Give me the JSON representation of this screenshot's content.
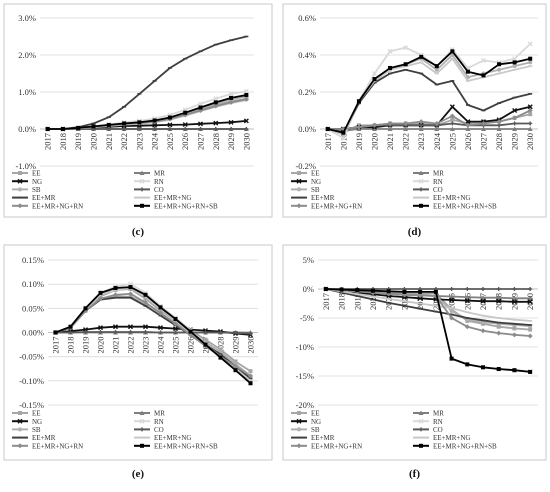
{
  "legend_entries": [
    "EE",
    "MR",
    "NG",
    "RN",
    "SB",
    "CO",
    "EE+MR",
    "EE+MR+NG",
    "EE+MR+NG+RN",
    "EE+MR+NG+RN+SB"
  ],
  "series_styles": [
    {
      "name": "EE",
      "color": "#a6a6a6",
      "marker": "square"
    },
    {
      "name": "MR",
      "color": "#7f7f7f",
      "marker": "triangle"
    },
    {
      "name": "NG",
      "color": "#111111",
      "marker": "x"
    },
    {
      "name": "RN",
      "color": "#d9d9d9",
      "marker": "x"
    },
    {
      "name": "SB",
      "color": "#b0b0b0",
      "marker": "circle"
    },
    {
      "name": "CO",
      "color": "#595959",
      "marker": "plus"
    },
    {
      "name": "EE+MR",
      "color": "#3f3f3f",
      "marker": "dash"
    },
    {
      "name": "EE+MR+NG",
      "color": "#c8c8c8",
      "marker": "dash"
    },
    {
      "name": "EE+MR+NG+RN",
      "color": "#8c8c8c",
      "marker": "diamond"
    },
    {
      "name": "EE+MR+NG+RN+SB",
      "color": "#000000",
      "marker": "square"
    }
  ],
  "chart_data": [
    {
      "panel": "(c)",
      "type": "line",
      "x": [
        "2017",
        "2018",
        "2019",
        "2020",
        "2021",
        "2022",
        "2023",
        "2024",
        "2025",
        "2026",
        "2027",
        "2028",
        "2029",
        "2030"
      ],
      "yticks": [
        "-1.0%",
        "0.0%",
        "1.0%",
        "2.0%",
        "3.0%"
      ],
      "ylim": [
        -1.0,
        3.0
      ],
      "series": [
        {
          "name": "EE",
          "values": [
            0,
            0,
            0.02,
            0.05,
            0.08,
            0.12,
            0.15,
            0.2,
            0.28,
            0.4,
            0.52,
            0.65,
            0.75,
            0.82
          ]
        },
        {
          "name": "MR",
          "values": [
            0,
            0,
            0,
            0,
            0,
            0,
            0,
            0,
            0,
            0,
            0,
            0,
            0,
            0
          ]
        },
        {
          "name": "NG",
          "values": [
            0,
            0,
            0.02,
            0.04,
            0.06,
            0.08,
            0.09,
            0.1,
            0.11,
            0.12,
            0.14,
            0.16,
            0.18,
            0.22
          ]
        },
        {
          "name": "RN",
          "values": [
            0,
            0,
            0.03,
            0.07,
            0.12,
            0.18,
            0.22,
            0.28,
            0.38,
            0.52,
            0.68,
            0.82,
            0.95,
            1.02
          ]
        },
        {
          "name": "SB",
          "values": [
            0,
            0,
            0.02,
            0.05,
            0.09,
            0.13,
            0.17,
            0.22,
            0.3,
            0.43,
            0.56,
            0.7,
            0.8,
            0.88
          ]
        },
        {
          "name": "CO",
          "values": [
            0,
            0,
            0,
            0,
            0,
            0,
            0,
            0,
            0,
            0,
            0,
            0,
            0,
            0
          ]
        },
        {
          "name": "EE+MR",
          "values": [
            0,
            0,
            0.05,
            0.15,
            0.32,
            0.6,
            0.95,
            1.3,
            1.65,
            1.9,
            2.1,
            2.28,
            2.4,
            2.5
          ]
        },
        {
          "name": "EE+MR+NG",
          "values": [
            0,
            0,
            0.02,
            0.05,
            0.08,
            0.12,
            0.14,
            0.18,
            0.25,
            0.36,
            0.48,
            0.6,
            0.7,
            0.78
          ]
        },
        {
          "name": "EE+MR+NG+RN",
          "values": [
            0,
            0,
            0.02,
            0.06,
            0.1,
            0.14,
            0.16,
            0.2,
            0.27,
            0.38,
            0.5,
            0.62,
            0.72,
            0.8
          ]
        },
        {
          "name": "EE+MR+NG+RN+SB",
          "values": [
            0,
            0,
            0.03,
            0.07,
            0.11,
            0.15,
            0.18,
            0.23,
            0.31,
            0.44,
            0.58,
            0.72,
            0.84,
            0.92
          ]
        }
      ]
    },
    {
      "panel": "(d)",
      "type": "line",
      "x": [
        "2017",
        "2018",
        "2019",
        "2020",
        "2021",
        "2022",
        "2023",
        "2024",
        "2025",
        "2026",
        "2027",
        "2028",
        "2029",
        "2030"
      ],
      "yticks": [
        "-0.2%",
        "0.0%",
        "0.2%",
        "0.4%",
        "0.6%"
      ],
      "ylim": [
        -0.2,
        0.6
      ],
      "series": [
        {
          "name": "EE",
          "values": [
            0,
            -0.02,
            0.02,
            0.02,
            0.03,
            0.03,
            0.03,
            0.02,
            0.05,
            0.03,
            0.04,
            0.04,
            0.06,
            0.08
          ]
        },
        {
          "name": "MR",
          "values": [
            0,
            -0.01,
            0,
            0,
            0,
            0,
            0,
            0,
            0,
            0,
            0,
            0,
            0,
            0
          ]
        },
        {
          "name": "NG",
          "values": [
            0,
            0,
            0.01,
            0.01,
            0.02,
            0.02,
            0.02,
            0.02,
            0.12,
            0.04,
            0.04,
            0.05,
            0.1,
            0.12
          ]
        },
        {
          "name": "RN",
          "values": [
            0,
            -0.05,
            0.15,
            0.3,
            0.42,
            0.44,
            0.4,
            0.34,
            0.43,
            0.33,
            0.37,
            0.36,
            0.38,
            0.46
          ]
        },
        {
          "name": "SB",
          "values": [
            0,
            -0.03,
            0.14,
            0.26,
            0.32,
            0.35,
            0.38,
            0.32,
            0.4,
            0.28,
            0.3,
            0.32,
            0.34,
            0.36
          ]
        },
        {
          "name": "CO",
          "values": [
            0,
            0,
            0.01,
            0.02,
            0.02,
            0.02,
            0.02,
            0.02,
            0.03,
            0.02,
            0.02,
            0.02,
            0.03,
            0.03
          ]
        },
        {
          "name": "EE+MR",
          "values": [
            0,
            -0.02,
            0.14,
            0.25,
            0.3,
            0.32,
            0.3,
            0.24,
            0.26,
            0.13,
            0.1,
            0.14,
            0.17,
            0.19
          ]
        },
        {
          "name": "EE+MR+NG",
          "values": [
            0,
            -0.03,
            0.15,
            0.26,
            0.32,
            0.34,
            0.36,
            0.3,
            0.38,
            0.26,
            0.28,
            0.3,
            0.32,
            0.34
          ]
        },
        {
          "name": "EE+MR+NG+RN",
          "values": [
            0,
            0,
            0.01,
            0.02,
            0.03,
            0.03,
            0.04,
            0.03,
            0.07,
            0.02,
            0.03,
            0.04,
            0.06,
            0.1
          ]
        },
        {
          "name": "EE+MR+NG+RN+SB",
          "values": [
            0,
            -0.02,
            0.15,
            0.27,
            0.33,
            0.35,
            0.39,
            0.34,
            0.42,
            0.31,
            0.29,
            0.35,
            0.36,
            0.38
          ]
        }
      ]
    },
    {
      "panel": "(e)",
      "type": "line",
      "x": [
        "2017",
        "2018",
        "2019",
        "2020",
        "2021",
        "2022",
        "2023",
        "2024",
        "2025",
        "2026",
        "2027",
        "2028",
        "2029",
        "2030"
      ],
      "yticks": [
        "-0.15%",
        "-0.10%",
        "-0.05%",
        "0.00%",
        "0.05%",
        "0.10%",
        "0.15%"
      ],
      "ylim": [
        -0.15,
        0.15
      ],
      "series": [
        {
          "name": "EE",
          "values": [
            0,
            0.01,
            0.045,
            0.075,
            0.088,
            0.09,
            0.07,
            0.045,
            0.025,
            0.005,
            -0.015,
            -0.035,
            -0.06,
            -0.08
          ]
        },
        {
          "name": "MR",
          "values": [
            0,
            0,
            0,
            0,
            0,
            0,
            0,
            0,
            0,
            0,
            0,
            0,
            0,
            0
          ]
        },
        {
          "name": "NG",
          "values": [
            0,
            0.003,
            0.006,
            0.01,
            0.012,
            0.012,
            0.012,
            0.01,
            0.008,
            0.006,
            0.004,
            0.002,
            -0.002,
            -0.005
          ]
        },
        {
          "name": "RN",
          "values": [
            0,
            0.012,
            0.05,
            0.082,
            0.095,
            0.1,
            0.082,
            0.055,
            0.03,
            0.005,
            -0.025,
            -0.05,
            -0.075,
            -0.1
          ]
        },
        {
          "name": "SB",
          "values": [
            0,
            0.01,
            0.045,
            0.07,
            0.075,
            0.074,
            0.06,
            0.04,
            0.02,
            0,
            -0.02,
            -0.04,
            -0.065,
            -0.09
          ]
        },
        {
          "name": "CO",
          "values": [
            0,
            0,
            0.001,
            0.001,
            0.001,
            0.001,
            0.001,
            0,
            0,
            0,
            0,
            0,
            -0.001,
            -0.002
          ]
        },
        {
          "name": "EE+MR",
          "values": [
            0,
            0.01,
            0.045,
            0.068,
            0.072,
            0.072,
            0.055,
            0.035,
            0.015,
            -0.005,
            -0.025,
            -0.045,
            -0.07,
            -0.095
          ]
        },
        {
          "name": "EE+MR+NG",
          "values": [
            0,
            0.011,
            0.048,
            0.078,
            0.088,
            0.092,
            0.075,
            0.05,
            0.025,
            0,
            -0.025,
            -0.05,
            -0.075,
            -0.1
          ]
        },
        {
          "name": "EE+MR+NG+RN",
          "values": [
            0,
            0.01,
            0.045,
            0.07,
            0.078,
            0.08,
            0.062,
            0.04,
            0.018,
            -0.005,
            -0.028,
            -0.05,
            -0.07,
            -0.09
          ]
        },
        {
          "name": "EE+MR+NG+RN+SB",
          "values": [
            0,
            0.012,
            0.05,
            0.082,
            0.092,
            0.094,
            0.078,
            0.052,
            0.028,
            0.002,
            -0.025,
            -0.052,
            -0.078,
            -0.105
          ]
        }
      ]
    },
    {
      "panel": "(f)",
      "type": "line",
      "x": [
        "2017",
        "2018",
        "2019",
        "2020",
        "2021",
        "2022",
        "2023",
        "2024",
        "2025",
        "2026",
        "2027",
        "2028",
        "2029",
        "2030"
      ],
      "yticks": [
        "-20%",
        "-15%",
        "-10%",
        "-5%",
        "0%",
        "5%"
      ],
      "ylim": [
        -20,
        5
      ],
      "series": [
        {
          "name": "EE",
          "values": [
            0,
            -0.1,
            -0.3,
            -0.5,
            -0.6,
            -0.7,
            -0.8,
            -0.8,
            -3.5,
            -5.5,
            -6.0,
            -6.5,
            -6.8,
            -7.0
          ]
        },
        {
          "name": "MR",
          "values": [
            0,
            -0.2,
            -0.4,
            -0.6,
            -0.8,
            -1.0,
            -1.1,
            -1.2,
            -1.3,
            -1.4,
            -1.5,
            -1.5,
            -1.6,
            -1.6
          ]
        },
        {
          "name": "NG",
          "values": [
            0,
            -0.3,
            -0.6,
            -0.9,
            -1.2,
            -1.4,
            -1.6,
            -1.8,
            -1.9,
            -2.0,
            -2.1,
            -2.1,
            -2.2,
            -2.2
          ]
        },
        {
          "name": "RN",
          "values": [
            0,
            -0.1,
            -0.2,
            -0.3,
            -0.4,
            -0.5,
            -0.5,
            -0.5,
            -12.0,
            -13.0,
            -13.5,
            -13.8,
            -14.0,
            -14.2
          ]
        },
        {
          "name": "SB",
          "values": [
            0,
            -0.2,
            -0.4,
            -0.6,
            -0.8,
            -1.0,
            -1.1,
            -1.2,
            -3.8,
            -5.2,
            -5.7,
            -6.0,
            -6.2,
            -6.4
          ]
        },
        {
          "name": "CO",
          "values": [
            0,
            0,
            0,
            0,
            0,
            0,
            0,
            0,
            0,
            0,
            0,
            0,
            0,
            0
          ]
        },
        {
          "name": "EE+MR",
          "values": [
            0,
            -0.6,
            -1.2,
            -1.8,
            -2.4,
            -2.9,
            -3.4,
            -3.9,
            -4.4,
            -5.0,
            -5.4,
            -5.8,
            -6.0,
            -6.2
          ]
        },
        {
          "name": "EE+MR+NG",
          "values": [
            0,
            -0.4,
            -0.9,
            -1.3,
            -1.7,
            -2.1,
            -2.5,
            -2.9,
            -3.3,
            -4.0,
            -4.6,
            -5.0,
            -5.3,
            -5.5
          ]
        },
        {
          "name": "EE+MR+NG+RN",
          "values": [
            0,
            -0.2,
            -0.4,
            -0.6,
            -0.8,
            -1.0,
            -1.1,
            -1.2,
            -5.0,
            -6.5,
            -7.2,
            -7.6,
            -7.9,
            -8.1
          ]
        },
        {
          "name": "EE+MR+NG+RN+SB",
          "values": [
            0,
            -0.1,
            -0.2,
            -0.3,
            -0.4,
            -0.5,
            -0.5,
            -0.5,
            -12.0,
            -13.0,
            -13.5,
            -13.8,
            -14.0,
            -14.3
          ]
        }
      ]
    }
  ]
}
